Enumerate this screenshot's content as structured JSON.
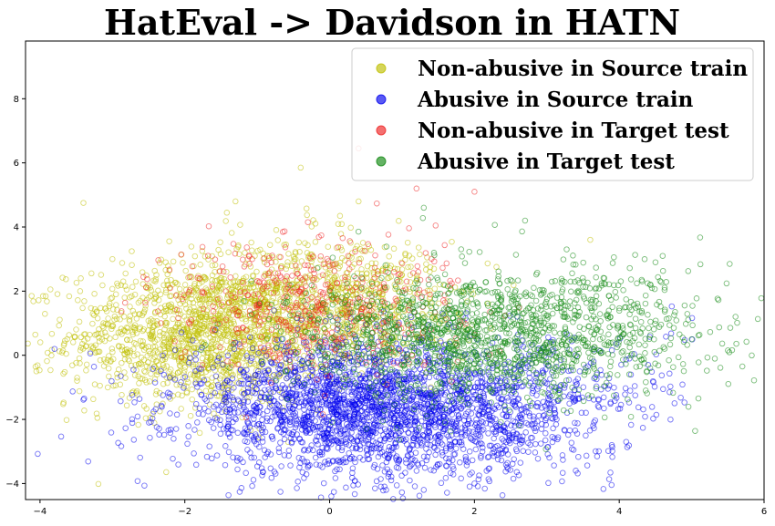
{
  "chart_data": {
    "type": "scatter",
    "title": "HatEval -> Davidson in HATN",
    "xlabel": "",
    "ylabel": "",
    "xlim": [
      -4.2,
      6.0
    ],
    "ylim": [
      -4.5,
      9.8
    ],
    "x_ticks": [
      -4,
      -2,
      0,
      2,
      4,
      6
    ],
    "y_ticks": [
      -4,
      -2,
      0,
      2,
      4,
      6,
      8
    ],
    "x_tick_labels": [
      "−4",
      "−2",
      "0",
      "2",
      "4",
      "6"
    ],
    "y_tick_labels": [
      "−4",
      "−2",
      "0",
      "2",
      "4",
      "6",
      "8"
    ],
    "grid": false,
    "legend_position": "top-right",
    "marker": "hollow-circle",
    "series": [
      {
        "name": "Non-abusive in Source train",
        "color": "#bfbf00",
        "clusters": [
          {
            "cx": -1.8,
            "cy": 0.6,
            "sx": 0.9,
            "sy": 1.1,
            "n": 1300
          },
          {
            "cx": -0.4,
            "cy": 1.7,
            "sx": 0.9,
            "sy": 1.0,
            "n": 650
          },
          {
            "cx": 0.6,
            "cy": 1.6,
            "sx": 0.7,
            "sy": 1.0,
            "n": 250
          }
        ],
        "points": [
          [
            -4.05,
            -0.5
          ],
          [
            -3.4,
            4.75
          ],
          [
            -0.4,
            5.85
          ],
          [
            0.4,
            4.8
          ],
          [
            -3.0,
            3.0
          ],
          [
            -1.3,
            4.8
          ],
          [
            3.6,
            3.6
          ]
        ]
      },
      {
        "name": "Abusive in Source train",
        "color": "#0000ee",
        "clusters": [
          {
            "cx": 0.3,
            "cy": -1.6,
            "sx": 1.2,
            "sy": 1.0,
            "n": 1900
          },
          {
            "cx": 1.8,
            "cy": -2.1,
            "sx": 1.1,
            "sy": 1.0,
            "n": 650
          },
          {
            "cx": 3.2,
            "cy": -0.8,
            "sx": 0.9,
            "sy": 0.9,
            "n": 180
          }
        ],
        "points": [
          [
            -3.8,
            0.2
          ],
          [
            1.3,
            -4.2
          ],
          [
            3.4,
            -3.6
          ],
          [
            2.0,
            -4.0
          ],
          [
            4.4,
            -0.3
          ]
        ]
      },
      {
        "name": "Non-abusive in Target test",
        "color": "#ee2222",
        "clusters": [
          {
            "cx": -0.6,
            "cy": 1.6,
            "sx": 0.8,
            "sy": 1.0,
            "n": 320
          },
          {
            "cx": 0.5,
            "cy": 1.5,
            "sx": 0.8,
            "sy": 1.1,
            "n": 180
          }
        ],
        "points": [
          [
            0.4,
            6.45
          ],
          [
            1.2,
            5.2
          ],
          [
            2.0,
            5.1
          ],
          [
            -0.3,
            4.15
          ]
        ]
      },
      {
        "name": "Abusive in Target test",
        "color": "#118811",
        "clusters": [
          {
            "cx": 1.8,
            "cy": 0.5,
            "sx": 1.2,
            "sy": 1.0,
            "n": 1100
          },
          {
            "cx": 3.5,
            "cy": 0.9,
            "sx": 1.0,
            "sy": 1.0,
            "n": 450
          }
        ],
        "points": [
          [
            5.7,
            -0.35
          ],
          [
            5.5,
            0.15
          ],
          [
            4.5,
            2.9
          ],
          [
            4.6,
            3.1
          ],
          [
            1.3,
            4.6
          ],
          [
            2.7,
            4.2
          ],
          [
            5.0,
            0.5
          ]
        ]
      }
    ]
  }
}
